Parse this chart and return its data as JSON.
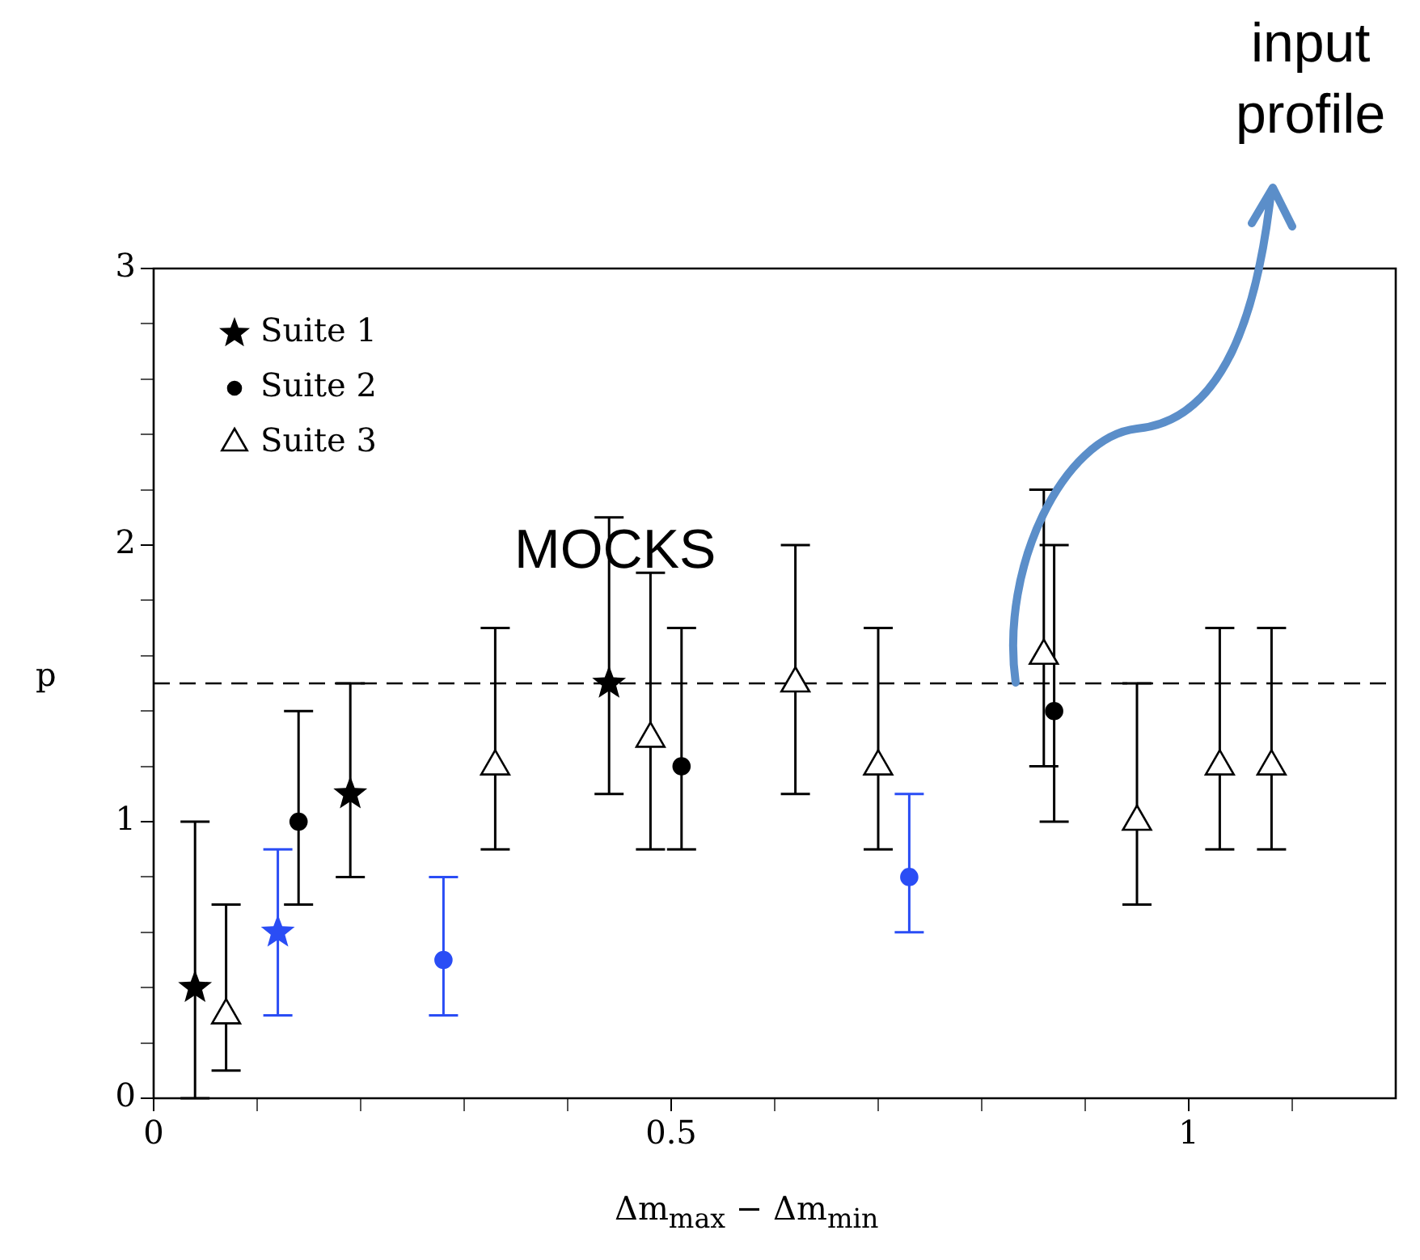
{
  "chart_data": {
    "type": "scatter",
    "xlabel": "Δm$_{max}$ − Δm$_{min}$",
    "ylabel": "p",
    "xlim": [
      0,
      1.2
    ],
    "ylim": [
      0,
      3
    ],
    "xticks": [
      0,
      {
        "value": 0.1,
        "label": null
      },
      {
        "value": 0.2,
        "label": null
      },
      {
        "value": 0.3,
        "label": null
      },
      {
        "value": 0.4,
        "label": null
      },
      0.5,
      {
        "value": 0.6,
        "label": null
      },
      {
        "value": 0.7,
        "label": null
      },
      {
        "value": 0.8,
        "label": null
      },
      {
        "value": 0.9,
        "label": null
      },
      1,
      {
        "value": 1.1,
        "label": null
      }
    ],
    "yticks": [
      0,
      {
        "value": 0.2,
        "label": null
      },
      {
        "value": 0.4,
        "label": null
      },
      {
        "value": 0.6,
        "label": null
      },
      {
        "value": 0.8,
        "label": null
      },
      1,
      {
        "value": 1.2,
        "label": null
      },
      {
        "value": 1.4,
        "label": null
      },
      {
        "value": 1.6,
        "label": null
      },
      {
        "value": 1.8,
        "label": null
      },
      2,
      {
        "value": 2.2,
        "label": null
      },
      {
        "value": 2.4,
        "label": null
      },
      {
        "value": 2.6,
        "label": null
      },
      {
        "value": 2.8,
        "label": null
      },
      3
    ],
    "grid": false,
    "legend": "top left",
    "series": [
      {
        "name": "Suite 1",
        "color": "#000000",
        "marker": "star",
        "x": [
          0.04,
          0.19,
          0.44
        ],
        "values": [
          0.4,
          1.1,
          1.5
        ],
        "errors": [
          [
            0,
            1
          ],
          [
            0.8,
            1.5
          ],
          [
            1.1,
            2.1
          ]
        ]
      },
      {
        "name": "Suite 2",
        "color": "#000000",
        "marker": "circle",
        "x": [
          0.14,
          0.51,
          0.87
        ],
        "values": [
          1.0,
          1.2,
          1.4
        ],
        "errors": [
          [
            0.7,
            1.4
          ],
          [
            0.9,
            1.7
          ],
          [
            1.0,
            2.0
          ]
        ]
      },
      {
        "name": "Suite 3",
        "color": "#000000",
        "marker": "triangle",
        "x": [
          0.07,
          0.33,
          0.48,
          0.62,
          0.7,
          0.86,
          0.95,
          1.03,
          1.08
        ],
        "values": [
          0.3,
          1.2,
          1.3,
          1.5,
          1.2,
          1.6,
          1.0,
          1.2,
          1.2
        ],
        "errors": [
          [
            0.1,
            0.7
          ],
          [
            0.9,
            1.7
          ],
          [
            0.9,
            1.9
          ],
          [
            1.1,
            2.0
          ],
          [
            0.9,
            1.7
          ],
          [
            1.2,
            2.2
          ],
          [
            0.7,
            1.5
          ],
          [
            0.9,
            1.7
          ],
          [
            0.9,
            1.7
          ]
        ]
      },
      {
        "color": "#2a4df5",
        "marker": "star",
        "x": [
          0.12
        ],
        "values": [
          0.6
        ],
        "errors": [
          [
            0.3,
            0.9
          ]
        ]
      },
      {
        "color": "#2a4df5",
        "marker": "circle",
        "x": [
          0.28,
          0.73
        ],
        "values": [
          0.5,
          0.8
        ],
        "errors": [
          [
            0.3,
            0.8
          ],
          [
            0.6,
            1.1
          ]
        ]
      }
    ],
    "ref_lines": [
      {
        "axis": "y",
        "value": 1.5,
        "line_style": "dashed",
        "color": "#000000"
      }
    ],
    "annotations": [
      "MOCKS",
      "input\nprofile"
    ]
  }
}
